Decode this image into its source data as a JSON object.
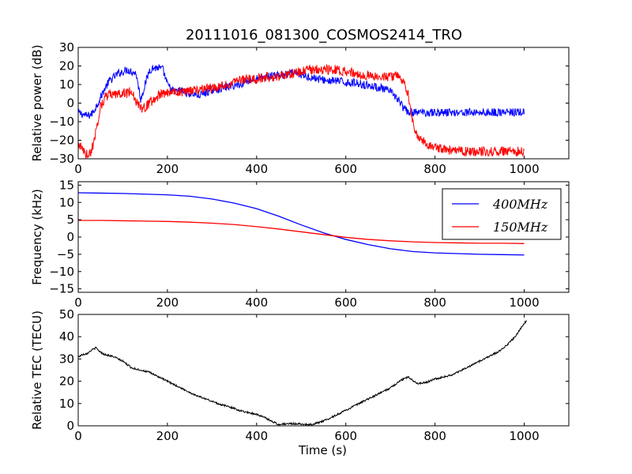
{
  "title": "20111016_081300_COSMOS2414_TRO",
  "chart_data": [
    {
      "type": "line",
      "ylabel": "Relative power (dB)",
      "xlim": [
        0,
        1100
      ],
      "ylim": [
        -30,
        30
      ],
      "xticks": [
        0,
        200,
        400,
        600,
        800,
        1000
      ],
      "yticks": [
        -30,
        -20,
        -10,
        0,
        10,
        20,
        30
      ],
      "series": [
        {
          "name": "",
          "color": "#0000ff",
          "points": [
            [
              0,
              -5
            ],
            [
              10,
              -6
            ],
            [
              20,
              -7
            ],
            [
              30,
              -6
            ],
            [
              40,
              -2
            ],
            [
              50,
              3
            ],
            [
              60,
              8
            ],
            [
              70,
              12
            ],
            [
              80,
              14
            ],
            [
              90,
              16
            ],
            [
              100,
              17
            ],
            [
              110,
              18
            ],
            [
              120,
              17
            ],
            [
              130,
              16
            ],
            [
              140,
              2
            ],
            [
              150,
              10
            ],
            [
              160,
              18
            ],
            [
              170,
              19
            ],
            [
              180,
              19
            ],
            [
              190,
              18
            ],
            [
              200,
              10
            ],
            [
              210,
              7
            ],
            [
              220,
              6
            ],
            [
              230,
              7
            ],
            [
              240,
              6
            ],
            [
              250,
              5
            ],
            [
              260,
              5
            ],
            [
              270,
              4
            ],
            [
              280,
              5
            ],
            [
              290,
              6
            ],
            [
              300,
              7
            ],
            [
              320,
              8
            ],
            [
              340,
              9
            ],
            [
              360,
              10
            ],
            [
              380,
              12
            ],
            [
              400,
              13
            ],
            [
              420,
              14
            ],
            [
              440,
              15
            ],
            [
              460,
              15
            ],
            [
              480,
              16
            ],
            [
              500,
              15
            ],
            [
              520,
              14
            ],
            [
              540,
              13
            ],
            [
              560,
              12
            ],
            [
              580,
              12
            ],
            [
              600,
              11
            ],
            [
              620,
              11
            ],
            [
              640,
              10
            ],
            [
              660,
              9
            ],
            [
              680,
              8
            ],
            [
              700,
              6
            ],
            [
              710,
              4
            ],
            [
              720,
              1
            ],
            [
              730,
              -3
            ],
            [
              740,
              -5
            ],
            [
              760,
              -5
            ],
            [
              800,
              -5
            ],
            [
              850,
              -5
            ],
            [
              900,
              -5
            ],
            [
              950,
              -5
            ],
            [
              1000,
              -5
            ]
          ],
          "noise": 2.2
        },
        {
          "name": "",
          "color": "#ff0000",
          "points": [
            [
              0,
              -22
            ],
            [
              10,
              -25
            ],
            [
              20,
              -28
            ],
            [
              30,
              -26
            ],
            [
              40,
              -15
            ],
            [
              50,
              -2
            ],
            [
              60,
              3
            ],
            [
              70,
              5
            ],
            [
              80,
              4
            ],
            [
              90,
              5
            ],
            [
              100,
              6
            ],
            [
              110,
              5
            ],
            [
              120,
              7
            ],
            [
              130,
              1
            ],
            [
              140,
              -3
            ],
            [
              150,
              -2
            ],
            [
              160,
              0
            ],
            [
              170,
              2
            ],
            [
              180,
              4
            ],
            [
              190,
              5
            ],
            [
              200,
              6
            ],
            [
              220,
              6
            ],
            [
              240,
              6
            ],
            [
              260,
              7
            ],
            [
              280,
              8
            ],
            [
              300,
              8
            ],
            [
              320,
              9
            ],
            [
              340,
              10
            ],
            [
              360,
              12
            ],
            [
              380,
              13
            ],
            [
              400,
              13
            ],
            [
              420,
              14
            ],
            [
              440,
              14
            ],
            [
              460,
              15
            ],
            [
              480,
              16
            ],
            [
              500,
              17
            ],
            [
              520,
              18
            ],
            [
              540,
              18
            ],
            [
              560,
              18
            ],
            [
              580,
              18
            ],
            [
              600,
              17
            ],
            [
              620,
              16
            ],
            [
              640,
              15
            ],
            [
              660,
              15
            ],
            [
              680,
              14
            ],
            [
              700,
              14
            ],
            [
              710,
              15
            ],
            [
              720,
              14
            ],
            [
              730,
              12
            ],
            [
              740,
              5
            ],
            [
              750,
              -10
            ],
            [
              760,
              -18
            ],
            [
              780,
              -22
            ],
            [
              800,
              -24
            ],
            [
              820,
              -25
            ],
            [
              850,
              -26
            ],
            [
              900,
              -26
            ],
            [
              950,
              -26
            ],
            [
              1000,
              -26
            ]
          ],
          "noise": 2.6
        }
      ]
    },
    {
      "type": "line",
      "ylabel": "Frequency (kHz)",
      "xlim": [
        0,
        1100
      ],
      "ylim": [
        -16,
        16
      ],
      "xticks": [
        0,
        200,
        400,
        600,
        800,
        1000
      ],
      "yticks": [
        -15,
        -10,
        -5,
        0,
        5,
        10,
        15
      ],
      "legend_position": "top-right",
      "series": [
        {
          "name": "400MHz",
          "color": "#0000ff",
          "points": [
            [
              0,
              12.8
            ],
            [
              50,
              12.7
            ],
            [
              100,
              12.6
            ],
            [
              150,
              12.4
            ],
            [
              200,
              12.2
            ],
            [
              250,
              11.8
            ],
            [
              300,
              11.0
            ],
            [
              350,
              9.8
            ],
            [
              400,
              8.2
            ],
            [
              450,
              6.0
            ],
            [
              500,
              3.5
            ],
            [
              550,
              1.2
            ],
            [
              600,
              -0.7
            ],
            [
              650,
              -2.2
            ],
            [
              700,
              -3.4
            ],
            [
              750,
              -4.2
            ],
            [
              800,
              -4.6
            ],
            [
              850,
              -4.8
            ],
            [
              900,
              -5.0
            ],
            [
              950,
              -5.1
            ],
            [
              1000,
              -5.2
            ]
          ]
        },
        {
          "name": "150MHz",
          "color": "#ff0000",
          "points": [
            [
              0,
              4.8
            ],
            [
              50,
              4.8
            ],
            [
              100,
              4.7
            ],
            [
              150,
              4.6
            ],
            [
              200,
              4.5
            ],
            [
              250,
              4.3
            ],
            [
              300,
              4.0
            ],
            [
              350,
              3.6
            ],
            [
              400,
              3.0
            ],
            [
              450,
              2.3
            ],
            [
              500,
              1.5
            ],
            [
              550,
              0.7
            ],
            [
              600,
              -0.1
            ],
            [
              650,
              -0.7
            ],
            [
              700,
              -1.1
            ],
            [
              750,
              -1.4
            ],
            [
              800,
              -1.6
            ],
            [
              850,
              -1.7
            ],
            [
              900,
              -1.8
            ],
            [
              950,
              -1.8
            ],
            [
              1000,
              -1.9
            ]
          ]
        }
      ]
    },
    {
      "type": "line",
      "xlabel": "Time (s)",
      "ylabel": "Relative TEC (TECU)",
      "xlim": [
        0,
        1100
      ],
      "ylim": [
        0,
        50
      ],
      "xticks": [
        0,
        200,
        400,
        600,
        800,
        1000
      ],
      "yticks": [
        0,
        10,
        20,
        30,
        40,
        50
      ],
      "series": [
        {
          "name": "",
          "color": "#000000",
          "points": [
            [
              0,
              31
            ],
            [
              10,
              32
            ],
            [
              20,
              32.5
            ],
            [
              30,
              34
            ],
            [
              40,
              35
            ],
            [
              50,
              33
            ],
            [
              60,
              32
            ],
            [
              80,
              31
            ],
            [
              100,
              29
            ],
            [
              120,
              26
            ],
            [
              140,
              25
            ],
            [
              160,
              24
            ],
            [
              180,
              22
            ],
            [
              200,
              20
            ],
            [
              220,
              18
            ],
            [
              240,
              16
            ],
            [
              260,
              14
            ],
            [
              280,
              12.5
            ],
            [
              300,
              11
            ],
            [
              320,
              9.5
            ],
            [
              340,
              8.5
            ],
            [
              360,
              7
            ],
            [
              380,
              6
            ],
            [
              400,
              5.2
            ],
            [
              420,
              3.5
            ],
            [
              440,
              1.5
            ],
            [
              450,
              0.5
            ],
            [
              460,
              0.8
            ],
            [
              480,
              1.0
            ],
            [
              500,
              0.8
            ],
            [
              520,
              0.5
            ],
            [
              540,
              1.5
            ],
            [
              560,
              3
            ],
            [
              580,
              5
            ],
            [
              600,
              7
            ],
            [
              620,
              9
            ],
            [
              640,
              11
            ],
            [
              660,
              13
            ],
            [
              680,
              15
            ],
            [
              700,
              17
            ],
            [
              720,
              20
            ],
            [
              740,
              22
            ],
            [
              760,
              19
            ],
            [
              780,
              19.5
            ],
            [
              800,
              21
            ],
            [
              820,
              22
            ],
            [
              840,
              23
            ],
            [
              860,
              25
            ],
            [
              880,
              27
            ],
            [
              900,
              29
            ],
            [
              920,
              31
            ],
            [
              940,
              33
            ],
            [
              960,
              36
            ],
            [
              980,
              40
            ],
            [
              990,
              43
            ],
            [
              1000,
              46
            ],
            [
              1005,
              47
            ]
          ],
          "noise": 0.4
        }
      ]
    }
  ]
}
